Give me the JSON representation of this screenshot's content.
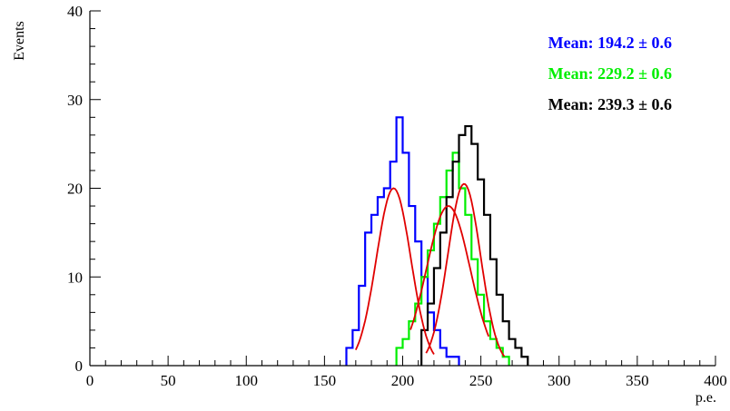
{
  "chart_data": {
    "type": "histogram",
    "xlabel": "p.e.",
    "ylabel": "Events",
    "xlim": [
      0,
      400
    ],
    "ylim": [
      0,
      40
    ],
    "xticks": [
      0,
      50,
      100,
      150,
      200,
      250,
      300,
      350,
      400
    ],
    "yticks": [
      0,
      10,
      20,
      30,
      40
    ],
    "bin_width": 2,
    "grid": false,
    "legend_position": "top-right",
    "fit_color": "#e00000",
    "annotations": [
      {
        "label": "Mean: ",
        "value": "194.2",
        "pm": "±",
        "error": "0.6",
        "color": "#0000ff"
      },
      {
        "label": "Mean: ",
        "value": "229.2",
        "pm": "±",
        "error": "0.6",
        "color": "#00ee00"
      },
      {
        "label": "Mean: ",
        "value": "239.3",
        "pm": "±",
        "error": "0.6",
        "color": "#000000"
      }
    ],
    "series": [
      {
        "color": "#0000ff",
        "fit": {
          "mean": 194.2,
          "sigma": 11,
          "amplitude": 20,
          "range": [
            170,
            220
          ]
        },
        "bin_starts": [
          164,
          168,
          172,
          176,
          180,
          184,
          188,
          192,
          196,
          200,
          204,
          208,
          212,
          216,
          220,
          224,
          228,
          232
        ],
        "values": [
          2,
          4,
          9,
          15,
          17,
          19,
          20,
          23,
          28,
          24,
          18,
          14,
          10,
          6,
          4,
          2,
          1,
          1
        ]
      },
      {
        "color": "#00ee00",
        "fit": {
          "mean": 229.2,
          "sigma": 14,
          "amplitude": 18,
          "range": [
            205,
            255
          ]
        },
        "bin_starts": [
          196,
          200,
          204,
          208,
          212,
          216,
          220,
          224,
          228,
          232,
          236,
          240,
          244,
          248,
          252,
          256,
          260,
          264
        ],
        "values": [
          2,
          3,
          5,
          7,
          10,
          13,
          16,
          19,
          22,
          24,
          20,
          17,
          12,
          8,
          5,
          3,
          2,
          1
        ]
      },
      {
        "color": "#000000",
        "fit": {
          "mean": 239.3,
          "sigma": 10.5,
          "amplitude": 20.5,
          "range": [
            215,
            265
          ]
        },
        "bin_starts": [
          212,
          216,
          220,
          224,
          228,
          232,
          236,
          240,
          244,
          248,
          252,
          256,
          260,
          264,
          268,
          272,
          276
        ],
        "values": [
          4,
          7,
          11,
          15,
          19,
          23,
          26,
          27,
          25,
          21,
          17,
          12,
          8,
          5,
          3,
          2,
          1
        ]
      }
    ]
  }
}
